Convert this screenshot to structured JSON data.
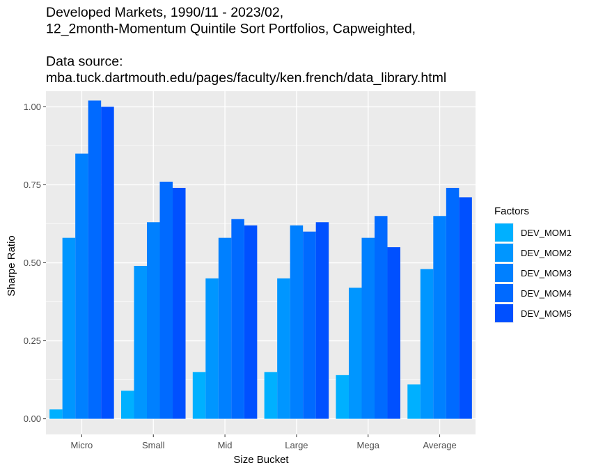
{
  "chart_data": {
    "type": "bar",
    "title": [
      "Developed Markets, 1990/11 - 2023/02,",
      "12_2month-Momentum Quintile Sort Portfolios, Capweighted,",
      "",
      "Data source:",
      "mba.tuck.dartmouth.edu/pages/faculty/ken.french/data_library.html"
    ],
    "xlabel": "Size Bucket",
    "ylabel": "Sharpe Ratio",
    "categories": [
      "Micro",
      "Small",
      "Mid",
      "Large",
      "Mega",
      "Average"
    ],
    "ylim": [
      -0.05,
      1.05
    ],
    "yticks": [
      0.0,
      0.25,
      0.5,
      0.75,
      1.0
    ],
    "ytick_labels": [
      "0.00",
      "0.25",
      "0.50",
      "0.75",
      "1.00"
    ],
    "grid": true,
    "panel_background": "#ebebeb",
    "grid_color": "#ffffff",
    "legend": {
      "title": "Factors",
      "position": "right"
    },
    "series": [
      {
        "name": "DEV_MOM1",
        "color": "#00b0ff",
        "values": [
          0.03,
          0.09,
          0.15,
          0.15,
          0.14,
          0.11
        ]
      },
      {
        "name": "DEV_MOM2",
        "color": "#0096ff",
        "values": [
          0.58,
          0.49,
          0.45,
          0.45,
          0.42,
          0.48
        ]
      },
      {
        "name": "DEV_MOM3",
        "color": "#0080ff",
        "values": [
          0.85,
          0.63,
          0.58,
          0.62,
          0.58,
          0.65
        ]
      },
      {
        "name": "DEV_MOM4",
        "color": "#006aff",
        "values": [
          1.02,
          0.76,
          0.64,
          0.6,
          0.65,
          0.74
        ]
      },
      {
        "name": "DEV_MOM5",
        "color": "#0050ff",
        "values": [
          1.0,
          0.74,
          0.62,
          0.63,
          0.55,
          0.71
        ]
      }
    ]
  }
}
